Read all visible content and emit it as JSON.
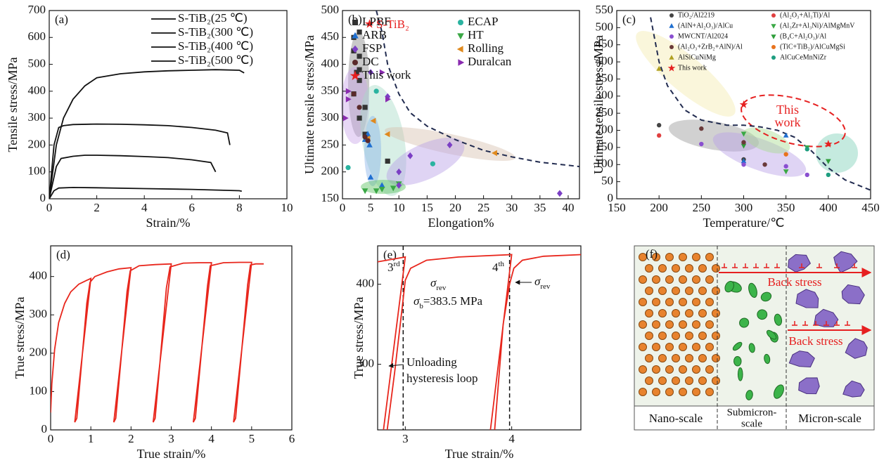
{
  "chart_data": [
    {
      "type": "line",
      "label": "(a)",
      "xlabel": "Strain/%",
      "ylabel": "Tensile stress/MPa",
      "xlim": [
        0,
        10
      ],
      "ylim": [
        0,
        700
      ],
      "xticks": [
        0,
        2,
        4,
        6,
        8,
        10
      ],
      "yticks": [
        0,
        100,
        200,
        300,
        400,
        500,
        600,
        700
      ],
      "series": [
        {
          "name": "S-TiB₂(25 ℃)",
          "color": "#111111",
          "x": [
            0,
            0.3,
            0.6,
            1,
            1.5,
            2,
            3,
            4,
            5,
            6,
            7,
            8,
            8.2
          ],
          "values": [
            0,
            200,
            300,
            370,
            420,
            450,
            465,
            472,
            476,
            478,
            480,
            478,
            468
          ]
        },
        {
          "name": "S-TiB₂(300 ℃)",
          "color": "#111111",
          "x": [
            0,
            0.2,
            0.4,
            0.6,
            1,
            2,
            3,
            4,
            5,
            6,
            7,
            7.5,
            7.6
          ],
          "values": [
            0,
            200,
            265,
            272,
            276,
            278,
            277,
            275,
            272,
            265,
            255,
            245,
            200
          ]
        },
        {
          "name": "S-TiB₂(400 ℃)",
          "color": "#111111",
          "x": [
            0,
            0.3,
            0.5,
            1,
            1.5,
            2,
            3,
            4,
            5,
            6,
            6.8,
            7
          ],
          "values": [
            0,
            120,
            150,
            158,
            162,
            162,
            160,
            157,
            153,
            145,
            135,
            100
          ]
        },
        {
          "name": "S-TiB₂(500 ℃)",
          "color": "#111111",
          "x": [
            0,
            0.2,
            0.4,
            1,
            2,
            4,
            6,
            8,
            8.1
          ],
          "values": [
            0,
            30,
            40,
            42,
            41,
            38,
            35,
            30,
            28
          ]
        }
      ]
    },
    {
      "type": "scatter",
      "label": "(b)",
      "xlabel": "Elongation%",
      "ylabel": "Ultimate tensile stress/MPa",
      "xlim": [
        0,
        42
      ],
      "ylim": [
        150,
        500
      ],
      "xticks": [
        0,
        5,
        10,
        15,
        20,
        25,
        30,
        35,
        40
      ],
      "yticks": [
        150,
        200,
        250,
        300,
        350,
        400,
        450,
        500
      ],
      "annotation": "S-TiB₂",
      "series": [
        {
          "name": "LPBF",
          "color": "#333333",
          "marker": "square",
          "x": [
            2,
            3,
            2,
            3,
            3,
            2.5,
            3,
            2,
            4,
            3,
            4,
            8
          ],
          "values": [
            450,
            460,
            425,
            415,
            390,
            385,
            370,
            345,
            320,
            300,
            270,
            220
          ]
        },
        {
          "name": "ECAP",
          "color": "#2ab3a0",
          "marker": "circle",
          "x": [
            6,
            1,
            16
          ],
          "values": [
            350,
            208,
            215
          ]
        },
        {
          "name": "ARB",
          "color": "#1f6fd0",
          "marker": "triangle",
          "x": [
            4.8,
            4.5,
            4,
            7,
            5
          ],
          "values": [
            250,
            270,
            260,
            175,
            190
          ]
        },
        {
          "name": "HT",
          "color": "#3aa845",
          "marker": "triangle-down",
          "x": [
            9,
            10,
            6,
            4,
            7
          ],
          "values": [
            170,
            178,
            165,
            165,
            168
          ]
        },
        {
          "name": "FSP",
          "color": "#7b3fc4",
          "marker": "diamond",
          "x": [
            10,
            19,
            8,
            12,
            38.5,
            10,
            5
          ],
          "values": [
            200,
            250,
            340,
            230,
            160,
            175,
            385
          ]
        },
        {
          "name": "Rolling",
          "color": "#e08a1e",
          "marker": "triangle-left",
          "x": [
            4.5,
            8,
            27,
            5.5
          ],
          "values": [
            262,
            270,
            235,
            295
          ]
        },
        {
          "name": "DC",
          "color": "#5a2a2a",
          "marker": "circle",
          "x": [
            2,
            3,
            4,
            4.5
          ],
          "values": [
            345,
            320,
            265,
            258
          ]
        },
        {
          "name": "Duralcan",
          "color": "#8a2bb0",
          "marker": "triangle-right",
          "x": [
            0.5,
            1,
            1,
            7,
            8
          ],
          "values": [
            300,
            335,
            350,
            385,
            335
          ]
        },
        {
          "name": "This work",
          "color": "#e62020",
          "marker": "star",
          "x": [
            4.8
          ],
          "values": [
            475
          ]
        }
      ],
      "boundary": {
        "x": [
          6,
          7,
          8,
          10,
          12,
          15,
          20,
          25,
          30,
          35,
          42
        ],
        "values": [
          500,
          460,
          400,
          345,
          310,
          285,
          260,
          240,
          228,
          218,
          210
        ]
      }
    },
    {
      "type": "scatter",
      "label": "(c)",
      "xlabel": "Temperature/℃",
      "ylabel": "Ultimate tensile stress/MPa",
      "xlim": [
        150,
        450
      ],
      "ylim": [
        0,
        550
      ],
      "xticks": [
        150,
        200,
        250,
        300,
        350,
        400,
        450
      ],
      "yticks": [
        0,
        50,
        100,
        150,
        200,
        250,
        300,
        350,
        400,
        450,
        500,
        550
      ],
      "annotation": [
        "This",
        "work"
      ],
      "series": [
        {
          "name": "TiO₂/Al2219",
          "color": "#444444",
          "marker": "circle",
          "x": [
            200,
            300
          ],
          "values": [
            215,
            115
          ]
        },
        {
          "name": "(Al₂O₃+Al₃Ti)/Al",
          "color": "#e04040",
          "marker": "circle",
          "x": [
            200
          ],
          "values": [
            185
          ]
        },
        {
          "name": "(AlN+Al₂O₃)/AlCu",
          "color": "#1f6fd0",
          "marker": "triangle",
          "x": [
            350,
            300
          ],
          "values": [
            185,
            110
          ]
        },
        {
          "name": "(Al₃Zr+Al₃Ni)/AlMgMnV",
          "color": "#3aa845",
          "marker": "triangle-down",
          "x": [
            300,
            350,
            375
          ],
          "values": [
            190,
            80,
            150
          ]
        },
        {
          "name": "MWCNT/Al2024",
          "color": "#8a4fd0",
          "marker": "circle",
          "x": [
            250,
            300,
            350,
            375
          ],
          "values": [
            160,
            100,
            95,
            70
          ]
        },
        {
          "name": "(B₄C+Al₂O₃)/Al",
          "color": "#2e9e3a",
          "marker": "triangle-down",
          "x": [
            300,
            400
          ],
          "values": [
            155,
            110
          ]
        },
        {
          "name": "(Al₂O₃+ZrB₂+AlN)/Al",
          "color": "#6a3a3a",
          "marker": "circle",
          "x": [
            250,
            300,
            325
          ],
          "values": [
            205,
            165,
            100
          ]
        },
        {
          "name": "(TiC+TiB₂)/AlCuMgSi",
          "color": "#e8731e",
          "marker": "circle",
          "x": [
            350
          ],
          "values": [
            130
          ]
        },
        {
          "name": "AlSiCuNiMg",
          "color": "#b0a020",
          "marker": "triangle",
          "x": [
            200
          ],
          "values": [
            380
          ]
        },
        {
          "name": "AlCuCeMnNiZr",
          "color": "#1e9e80",
          "marker": "circle",
          "x": [
            375,
            400
          ],
          "values": [
            145,
            70
          ]
        },
        {
          "name": "This work",
          "color": "#e62020",
          "marker": "star",
          "x": [
            300,
            400
          ],
          "values": [
            275,
            160
          ]
        }
      ],
      "boundary": {
        "x": [
          190,
          200,
          210,
          230,
          250,
          280,
          300,
          320,
          340,
          360,
          380,
          400,
          420,
          450
        ],
        "values": [
          530,
          400,
          330,
          260,
          230,
          215,
          215,
          210,
          200,
          180,
          140,
          90,
          55,
          25
        ]
      }
    },
    {
      "type": "line",
      "label": "(d)",
      "xlabel": "True strain/%",
      "ylabel": "True stress/MPa",
      "xlim": [
        0,
        6
      ],
      "ylim": [
        0,
        480
      ],
      "xticks": [
        0,
        1,
        2,
        3,
        4,
        5,
        6
      ],
      "yticks": [
        0,
        100,
        200,
        300,
        400
      ],
      "series": [
        {
          "color": "#e8261c",
          "x": [
            0,
            0.03,
            0.1,
            0.2,
            0.35,
            0.5,
            0.7,
            0.9,
            1.0,
            0.6,
            0.65,
            0.9,
            0.98,
            1.1,
            1.4,
            1.7,
            2.0,
            1.57,
            1.62,
            1.9,
            1.98,
            2.2,
            2.6,
            3.0,
            2.55,
            2.6,
            2.88,
            2.97,
            3.3,
            3.7,
            4.0,
            3.55,
            3.6,
            3.9,
            3.97,
            4.3,
            4.7,
            5.0,
            4.55,
            4.6,
            4.9,
            4.97,
            5.1,
            5.3
          ],
          "values": [
            45,
            120,
            210,
            280,
            330,
            360,
            380,
            390,
            395,
            20,
            30,
            330,
            385,
            400,
            412,
            420,
            423,
            20,
            30,
            360,
            415,
            428,
            431,
            433,
            20,
            30,
            370,
            425,
            435,
            436,
            436,
            20,
            30,
            375,
            428,
            436,
            437,
            437,
            20,
            30,
            378,
            430,
            433,
            433
          ]
        }
      ]
    },
    {
      "type": "line",
      "label": "(e)",
      "xlabel": "True strain/%",
      "ylabel": "True stress/MPa",
      "xlim": [
        2.74,
        4.65
      ],
      "ylim": [
        218,
        448
      ],
      "xticks": [
        3,
        4
      ],
      "yticks": [
        300,
        400
      ],
      "vlines": [
        2.98,
        3.98
      ],
      "annotations": {
        "cycle3": [
          "3",
          "rd"
        ],
        "cycle4": [
          "4",
          "th"
        ],
        "sigma_rev": [
          "σ",
          "rev"
        ],
        "sigma_b": [
          "σ",
          "b",
          "=383.5 MPa"
        ],
        "unloading": [
          "Unloading",
          "hysteresis loop"
        ]
      },
      "series": [
        {
          "color": "#e8261c",
          "x": [
            2.74,
            3.0,
            2.795,
            null,
            2.83,
            2.9,
            2.97,
            3.0,
            3.05,
            3.2,
            3.5,
            4.0,
            3.8,
            null,
            3.84,
            3.92,
            3.98,
            4.02,
            4.1,
            4.3,
            4.65
          ],
          "values": [
            428,
            434,
            218,
            null,
            218,
            290,
            370,
            405,
            420,
            430,
            434,
            437,
            218,
            null,
            218,
            350,
            400,
            420,
            430,
            435,
            437
          ]
        }
      ]
    }
  ],
  "diagram": {
    "label": "(f)",
    "back_stress": "Back stress",
    "regions": {
      "nano": "Nano-scale",
      "submicron": [
        "Submicron-",
        "scale"
      ],
      "micron": "Micron-scale"
    }
  }
}
